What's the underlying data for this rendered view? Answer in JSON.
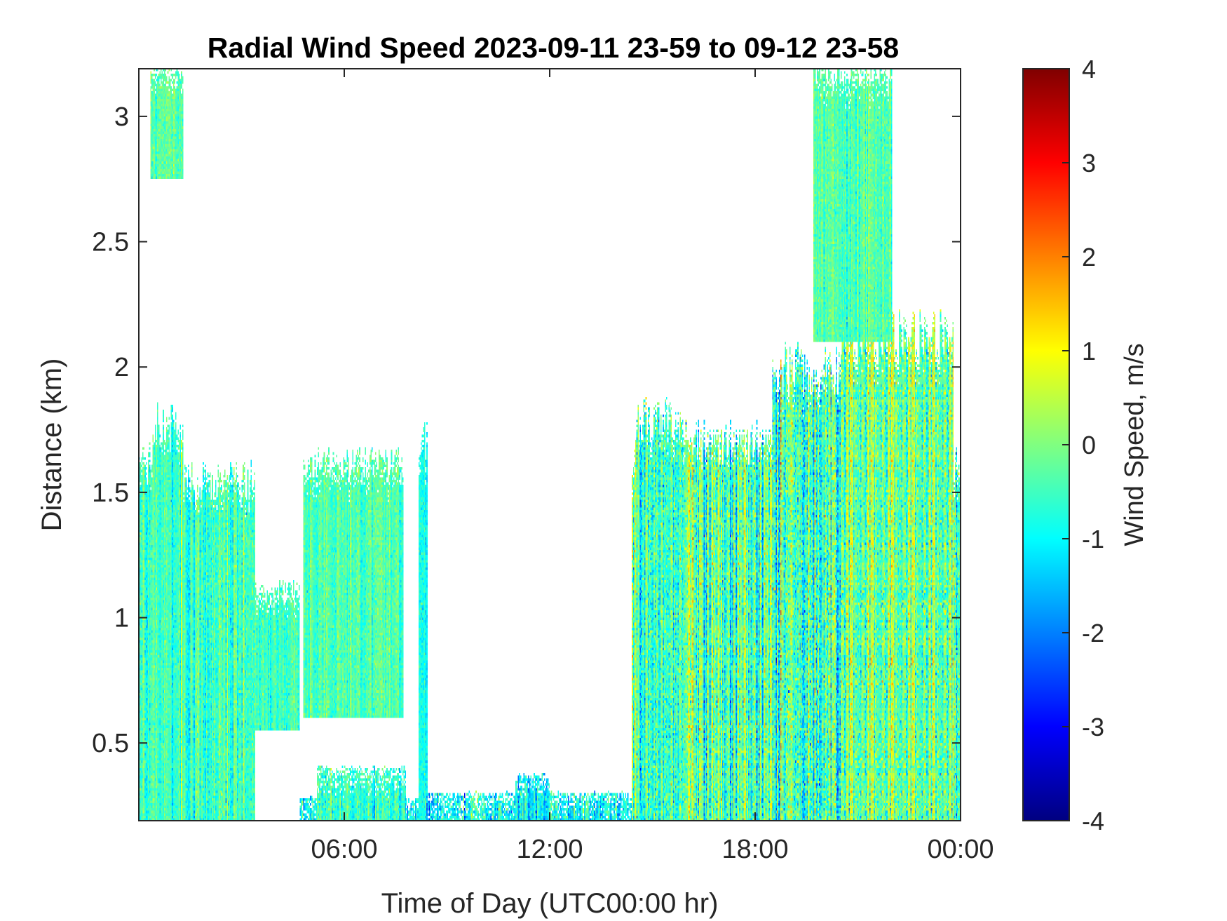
{
  "chart_data": {
    "type": "heatmap",
    "title": "Radial Wind Speed 2023-09-11 23-59 to 09-12 23-58",
    "xlabel": "Time of Day (UTC00:00 hr)",
    "ylabel": "Distance (km)",
    "colorbar_label": "Wind Speed, m/s",
    "colormap": "jet",
    "xlim_hours": [
      0,
      24
    ],
    "ylim_km": [
      0.19,
      3.19
    ],
    "clim": [
      -4,
      4
    ],
    "x_ticks": [
      {
        "value": 6,
        "label": "06:00"
      },
      {
        "value": 12,
        "label": "12:00"
      },
      {
        "value": 18,
        "label": "18:00"
      },
      {
        "value": 24,
        "label": "00:00"
      }
    ],
    "y_ticks": [
      {
        "value": 0.5,
        "label": "0.5"
      },
      {
        "value": 1,
        "label": "1"
      },
      {
        "value": 1.5,
        "label": "1.5"
      },
      {
        "value": 2,
        "label": "2"
      },
      {
        "value": 2.5,
        "label": "2.5"
      },
      {
        "value": 3,
        "label": "3"
      }
    ],
    "colorbar_ticks": [
      {
        "value": 4,
        "label": "4"
      },
      {
        "value": 3,
        "label": "3"
      },
      {
        "value": 2,
        "label": "2"
      },
      {
        "value": 1,
        "label": "1"
      },
      {
        "value": 0,
        "label": "0"
      },
      {
        "value": -1,
        "label": "-1"
      },
      {
        "value": -2,
        "label": "-2"
      },
      {
        "value": -3,
        "label": "-3"
      },
      {
        "value": -4,
        "label": "-4"
      }
    ],
    "grid": false,
    "data_regions": [
      {
        "t0": 0.0,
        "t1": 0.6,
        "d0": 0.19,
        "d1": 1.62,
        "mean": -0.6,
        "spread": 0.6
      },
      {
        "t0": 0.4,
        "t1": 1.3,
        "d0": 0.19,
        "d1": 1.78,
        "mean": -0.5,
        "spread": 0.5
      },
      {
        "t0": 0.35,
        "t1": 1.3,
        "d0": 2.75,
        "d1": 3.19,
        "mean": -0.4,
        "spread": 0.5
      },
      {
        "t0": 1.3,
        "t1": 3.4,
        "d0": 0.19,
        "d1": 1.55,
        "mean": -0.5,
        "spread": 0.6
      },
      {
        "t0": 3.4,
        "t1": 4.7,
        "d0": 0.55,
        "d1": 1.12,
        "mean": -0.6,
        "spread": 0.5
      },
      {
        "t0": 4.8,
        "t1": 7.7,
        "d0": 0.6,
        "d1": 1.62,
        "mean": -0.4,
        "spread": 0.5
      },
      {
        "t0": 4.7,
        "t1": 8.3,
        "d0": 0.19,
        "d1": 0.28,
        "mean": -0.9,
        "spread": 0.7
      },
      {
        "t0": 5.2,
        "t1": 7.8,
        "d0": 0.19,
        "d1": 0.4,
        "mean": -0.6,
        "spread": 0.6
      },
      {
        "t0": 8.2,
        "t1": 8.4,
        "d0": 0.19,
        "d1": 1.7,
        "mean": -0.8,
        "spread": 0.5
      },
      {
        "t0": 8.3,
        "t1": 14.5,
        "d0": 0.19,
        "d1": 0.3,
        "mean": -1.0,
        "spread": 0.8
      },
      {
        "t0": 11.0,
        "t1": 12.0,
        "d0": 0.19,
        "d1": 0.37,
        "mean": -1.0,
        "spread": 0.7
      },
      {
        "t0": 14.4,
        "t1": 24.0,
        "d0": 0.19,
        "d1": 1.62,
        "mean": -0.4,
        "spread": 1.0
      },
      {
        "t0": 14.5,
        "t1": 16.0,
        "d0": 0.19,
        "d1": 1.8,
        "mean": -0.5,
        "spread": 0.9
      },
      {
        "t0": 16.0,
        "t1": 18.5,
        "d0": 0.19,
        "d1": 1.7,
        "mean": -0.3,
        "spread": 1.0
      },
      {
        "t0": 18.5,
        "t1": 20.5,
        "d0": 0.19,
        "d1": 2.0,
        "mean": -0.6,
        "spread": 1.1
      },
      {
        "t0": 20.5,
        "t1": 23.8,
        "d0": 0.19,
        "d1": 2.12,
        "mean": -0.2,
        "spread": 1.0
      },
      {
        "t0": 19.7,
        "t1": 22.0,
        "d0": 2.1,
        "d1": 3.19,
        "mean": -0.3,
        "spread": 0.5
      }
    ]
  }
}
